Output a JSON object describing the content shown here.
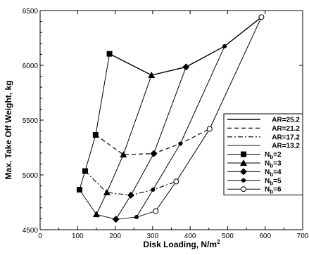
{
  "chart_data": {
    "type": "line",
    "xlabel": "Disk Loading, N/m",
    "xlabel_sup": "2",
    "ylabel": "Max. Take Off Weight, kg",
    "xlim": [
      0,
      700
    ],
    "ylim": [
      4500,
      6500
    ],
    "xticks": [
      "0",
      "100",
      "200",
      "300",
      "400",
      "500",
      "600",
      "700"
    ],
    "yticks": [
      "4500",
      "5000",
      "5500",
      "6000",
      "6500"
    ],
    "grid": false,
    "legend_position": "right",
    "blade_series": [
      {
        "name": "N",
        "sub": "b",
        "suffix": "=2",
        "marker": "square",
        "x": [
          105,
          120,
          148,
          185
        ],
        "y": [
          4865,
          5035,
          5365,
          6105
        ]
      },
      {
        "name": "N",
        "sub": "b",
        "suffix": "=3",
        "marker": "triangle",
        "x": [
          150,
          178,
          222,
          297
        ],
        "y": [
          4640,
          4840,
          5185,
          5910
        ]
      },
      {
        "name": "N",
        "sub": "b",
        "suffix": "=4",
        "marker": "diamond",
        "x": [
          202,
          242,
          303,
          389
        ],
        "y": [
          4595,
          4815,
          5195,
          5985
        ]
      },
      {
        "name": "N",
        "sub": "b",
        "suffix": "=5",
        "marker": "dot",
        "x": [
          257,
          301,
          374,
          492
        ],
        "y": [
          4615,
          4865,
          5285,
          6175
        ]
      },
      {
        "name": "N",
        "sub": "b",
        "suffix": "=6",
        "marker": "circle",
        "x": [
          308,
          363,
          452,
          590
        ],
        "y": [
          4670,
          4940,
          5420,
          6440
        ]
      }
    ],
    "ar_series": [
      {
        "name": "AR=25.2",
        "style": "solid-thick"
      },
      {
        "name": "AR=21.2",
        "style": "dashed"
      },
      {
        "name": "AR=17.2",
        "style": "dashdot"
      },
      {
        "name": "AR=13.2",
        "style": "solid-thin"
      }
    ]
  }
}
